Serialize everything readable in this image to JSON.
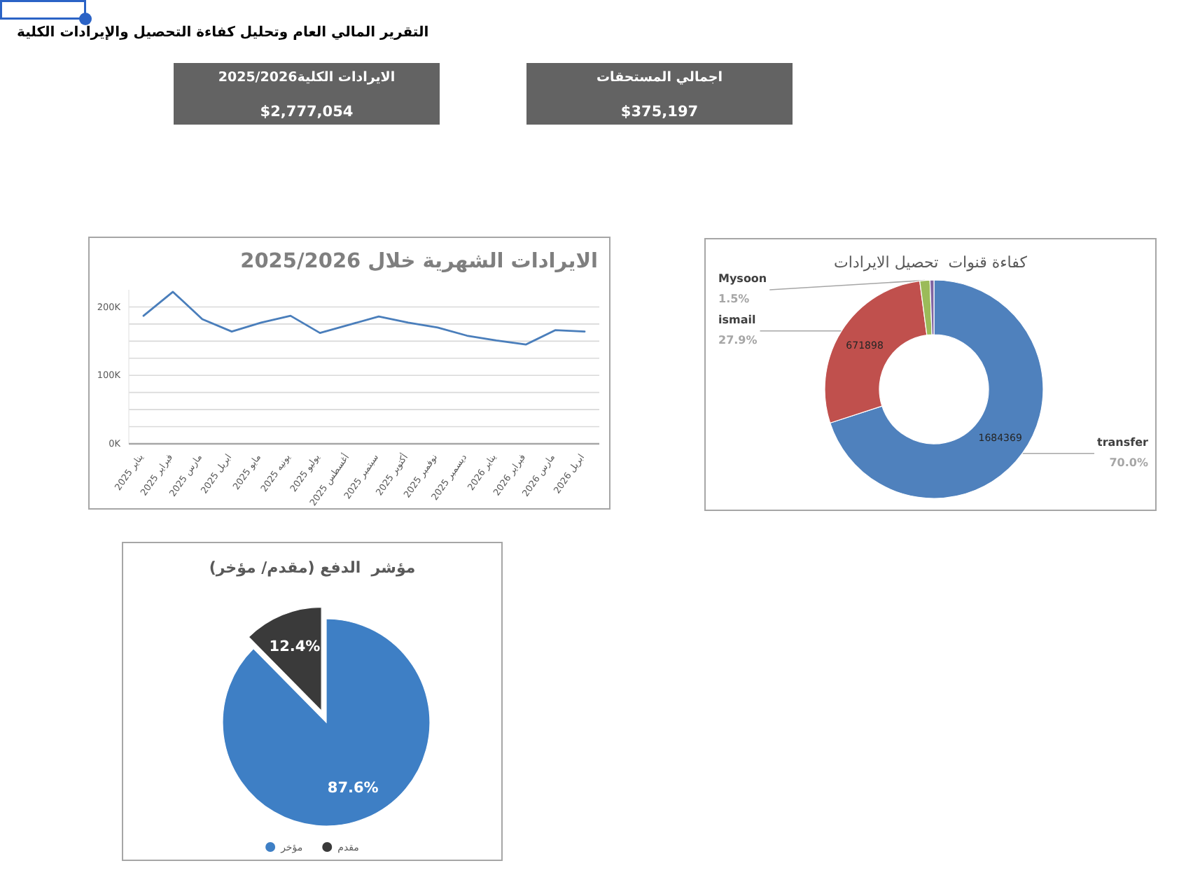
{
  "chart_data": [
    {
      "type": "other",
      "title": "التقرير المالي العام وتحليل كفاءة التحصيل والإيرادات الكلية",
      "annotations": [
        "الايرادات الكلية2025/2026",
        "$2,777,054",
        "اجمالي المستحقات",
        "$375,197"
      ],
      "color": "#636363"
    },
    {
      "type": "line",
      "title": "الايرادات الشهرية خلال 2025/2026",
      "categories": [
        "يناير 2025",
        "فبراير 2025",
        "مارس 2025",
        "ابريل 2025",
        "مايو 2025",
        "يونيه 2025",
        "يوليو 2025",
        "أغسطس 2025",
        "سبتمبر 2025",
        "أكتوبر 2025",
        "نوفمبر 2025",
        "ديسمبر 2025",
        "يناير 2026",
        "فبراير 2026",
        "مارس 2026",
        "ابريل 2026"
      ],
      "series": [
        {
          "color": "#4a7ebb",
          "values": [
            187000,
            222000,
            182000,
            164000,
            177000,
            187000,
            162000,
            174000,
            186000,
            177000,
            170000,
            158000,
            151000,
            145000,
            166000,
            164000
          ]
        }
      ],
      "ylim": [
        0,
        225000
      ],
      "yticks": [
        {
          "value": 0,
          "label": "0K"
        },
        {
          "value": 25000,
          "label": null
        },
        {
          "value": 50000,
          "label": null
        },
        {
          "value": 75000,
          "label": null
        },
        {
          "value": 100000,
          "label": "100K"
        },
        {
          "value": 125000,
          "label": null
        },
        {
          "value": 150000,
          "label": null
        },
        {
          "value": 175000,
          "label": null
        },
        {
          "value": 200000,
          "label": "200K"
        }
      ],
      "grid": "y"
    },
    {
      "type": "donut",
      "title": "كفاءة قنوات  تحصيل الايرادات",
      "categories": [
        "transfer",
        "ismail",
        "Mysoon",
        null
      ],
      "values": [
        1684369,
        671898,
        36000,
        14000
      ],
      "colors": [
        "#4f81bd",
        "#c0504d",
        "#9bbb59",
        "#8064a2"
      ],
      "value_labels": [
        "1684369",
        "671898",
        null,
        null
      ],
      "annotations": [
        "70.0%",
        "27.9%",
        "1.5%"
      ]
    },
    {
      "type": "pie",
      "title": "مؤشر  الدفع (مقدم/ مؤخر)",
      "categories": [
        "مؤخر",
        "مقدم"
      ],
      "values": [
        87.6,
        12.4
      ],
      "colors": [
        "#3e7fc5",
        "#3a3a3a"
      ],
      "value_labels": [
        "87.6%",
        "12.4%"
      ],
      "legend": "bottom"
    }
  ]
}
